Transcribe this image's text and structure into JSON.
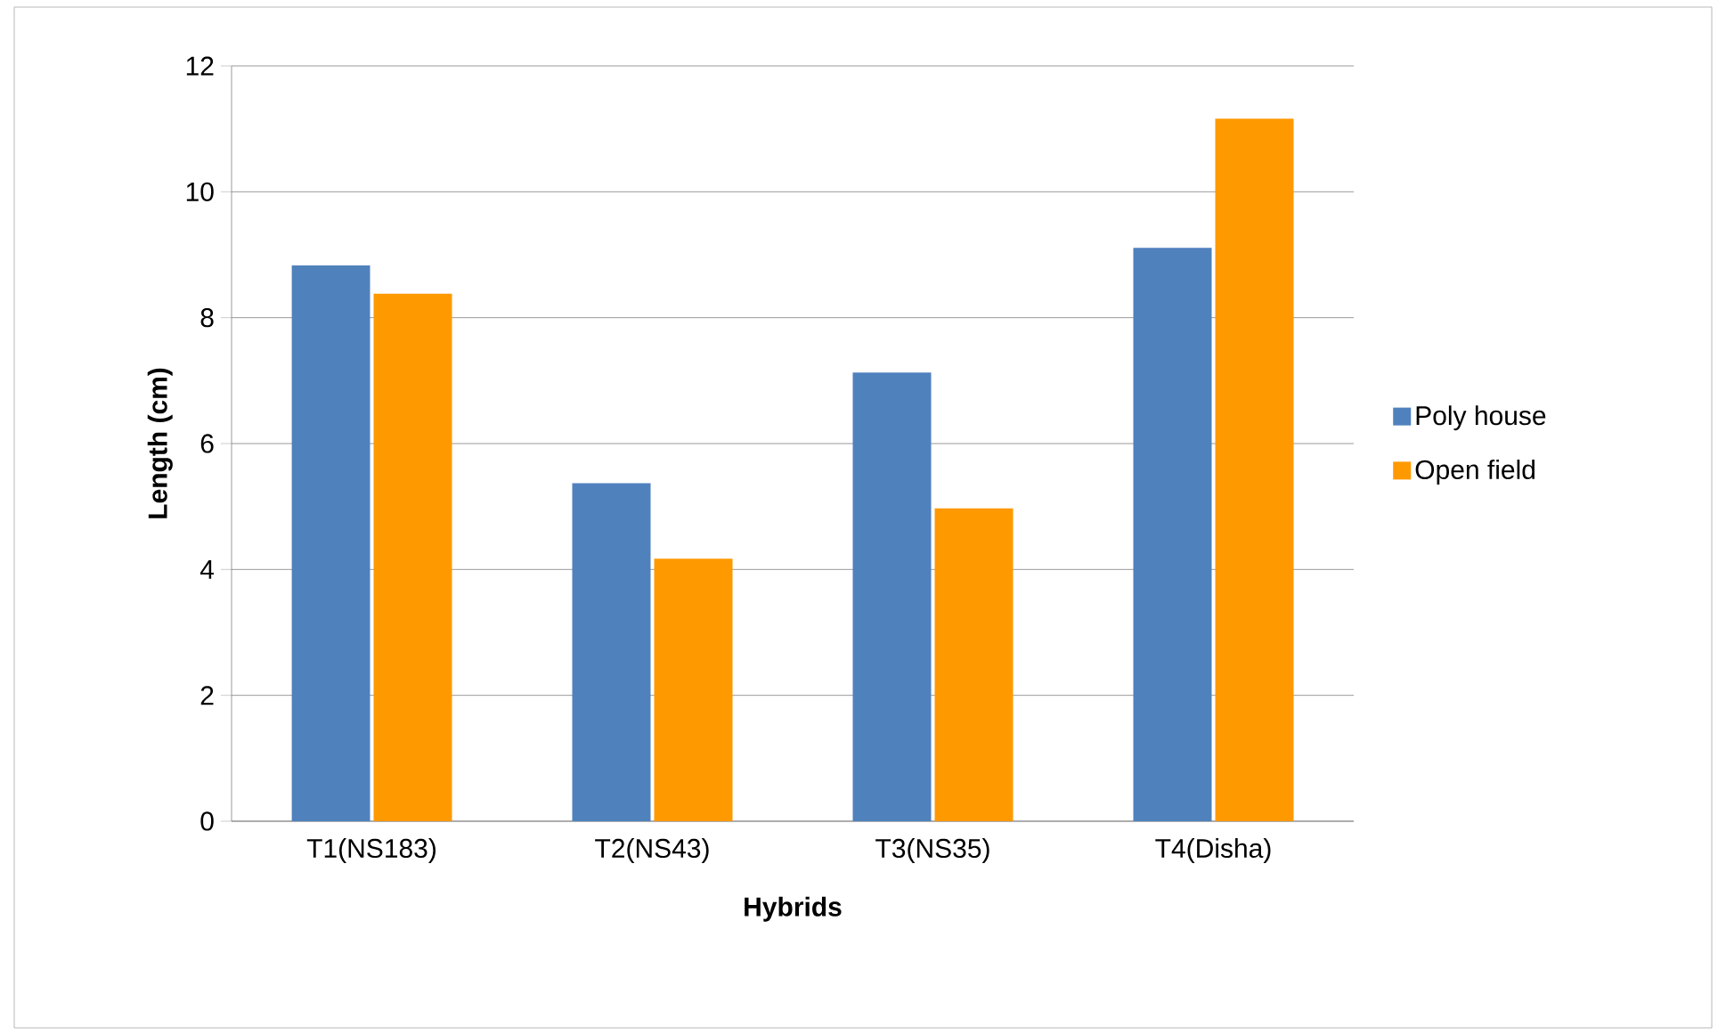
{
  "chart_data": {
    "type": "bar",
    "xlabel": "Hybrids",
    "ylabel": "Length (cm)",
    "categories": [
      "T1(NS183)",
      "T2(NS43)",
      "T3(NS35)",
      "T4(Disha)"
    ],
    "series": [
      {
        "name": "Poly house",
        "color": "#4f81bd",
        "values": [
          8.83,
          5.37,
          7.13,
          9.11
        ]
      },
      {
        "name": "Open field",
        "color": "#ff9900",
        "values": [
          8.38,
          4.17,
          4.97,
          11.16
        ]
      }
    ],
    "ylim": [
      0,
      12
    ],
    "yticks": [
      0,
      2,
      4,
      6,
      8,
      10,
      12
    ],
    "grid": "y",
    "legend": "right"
  }
}
